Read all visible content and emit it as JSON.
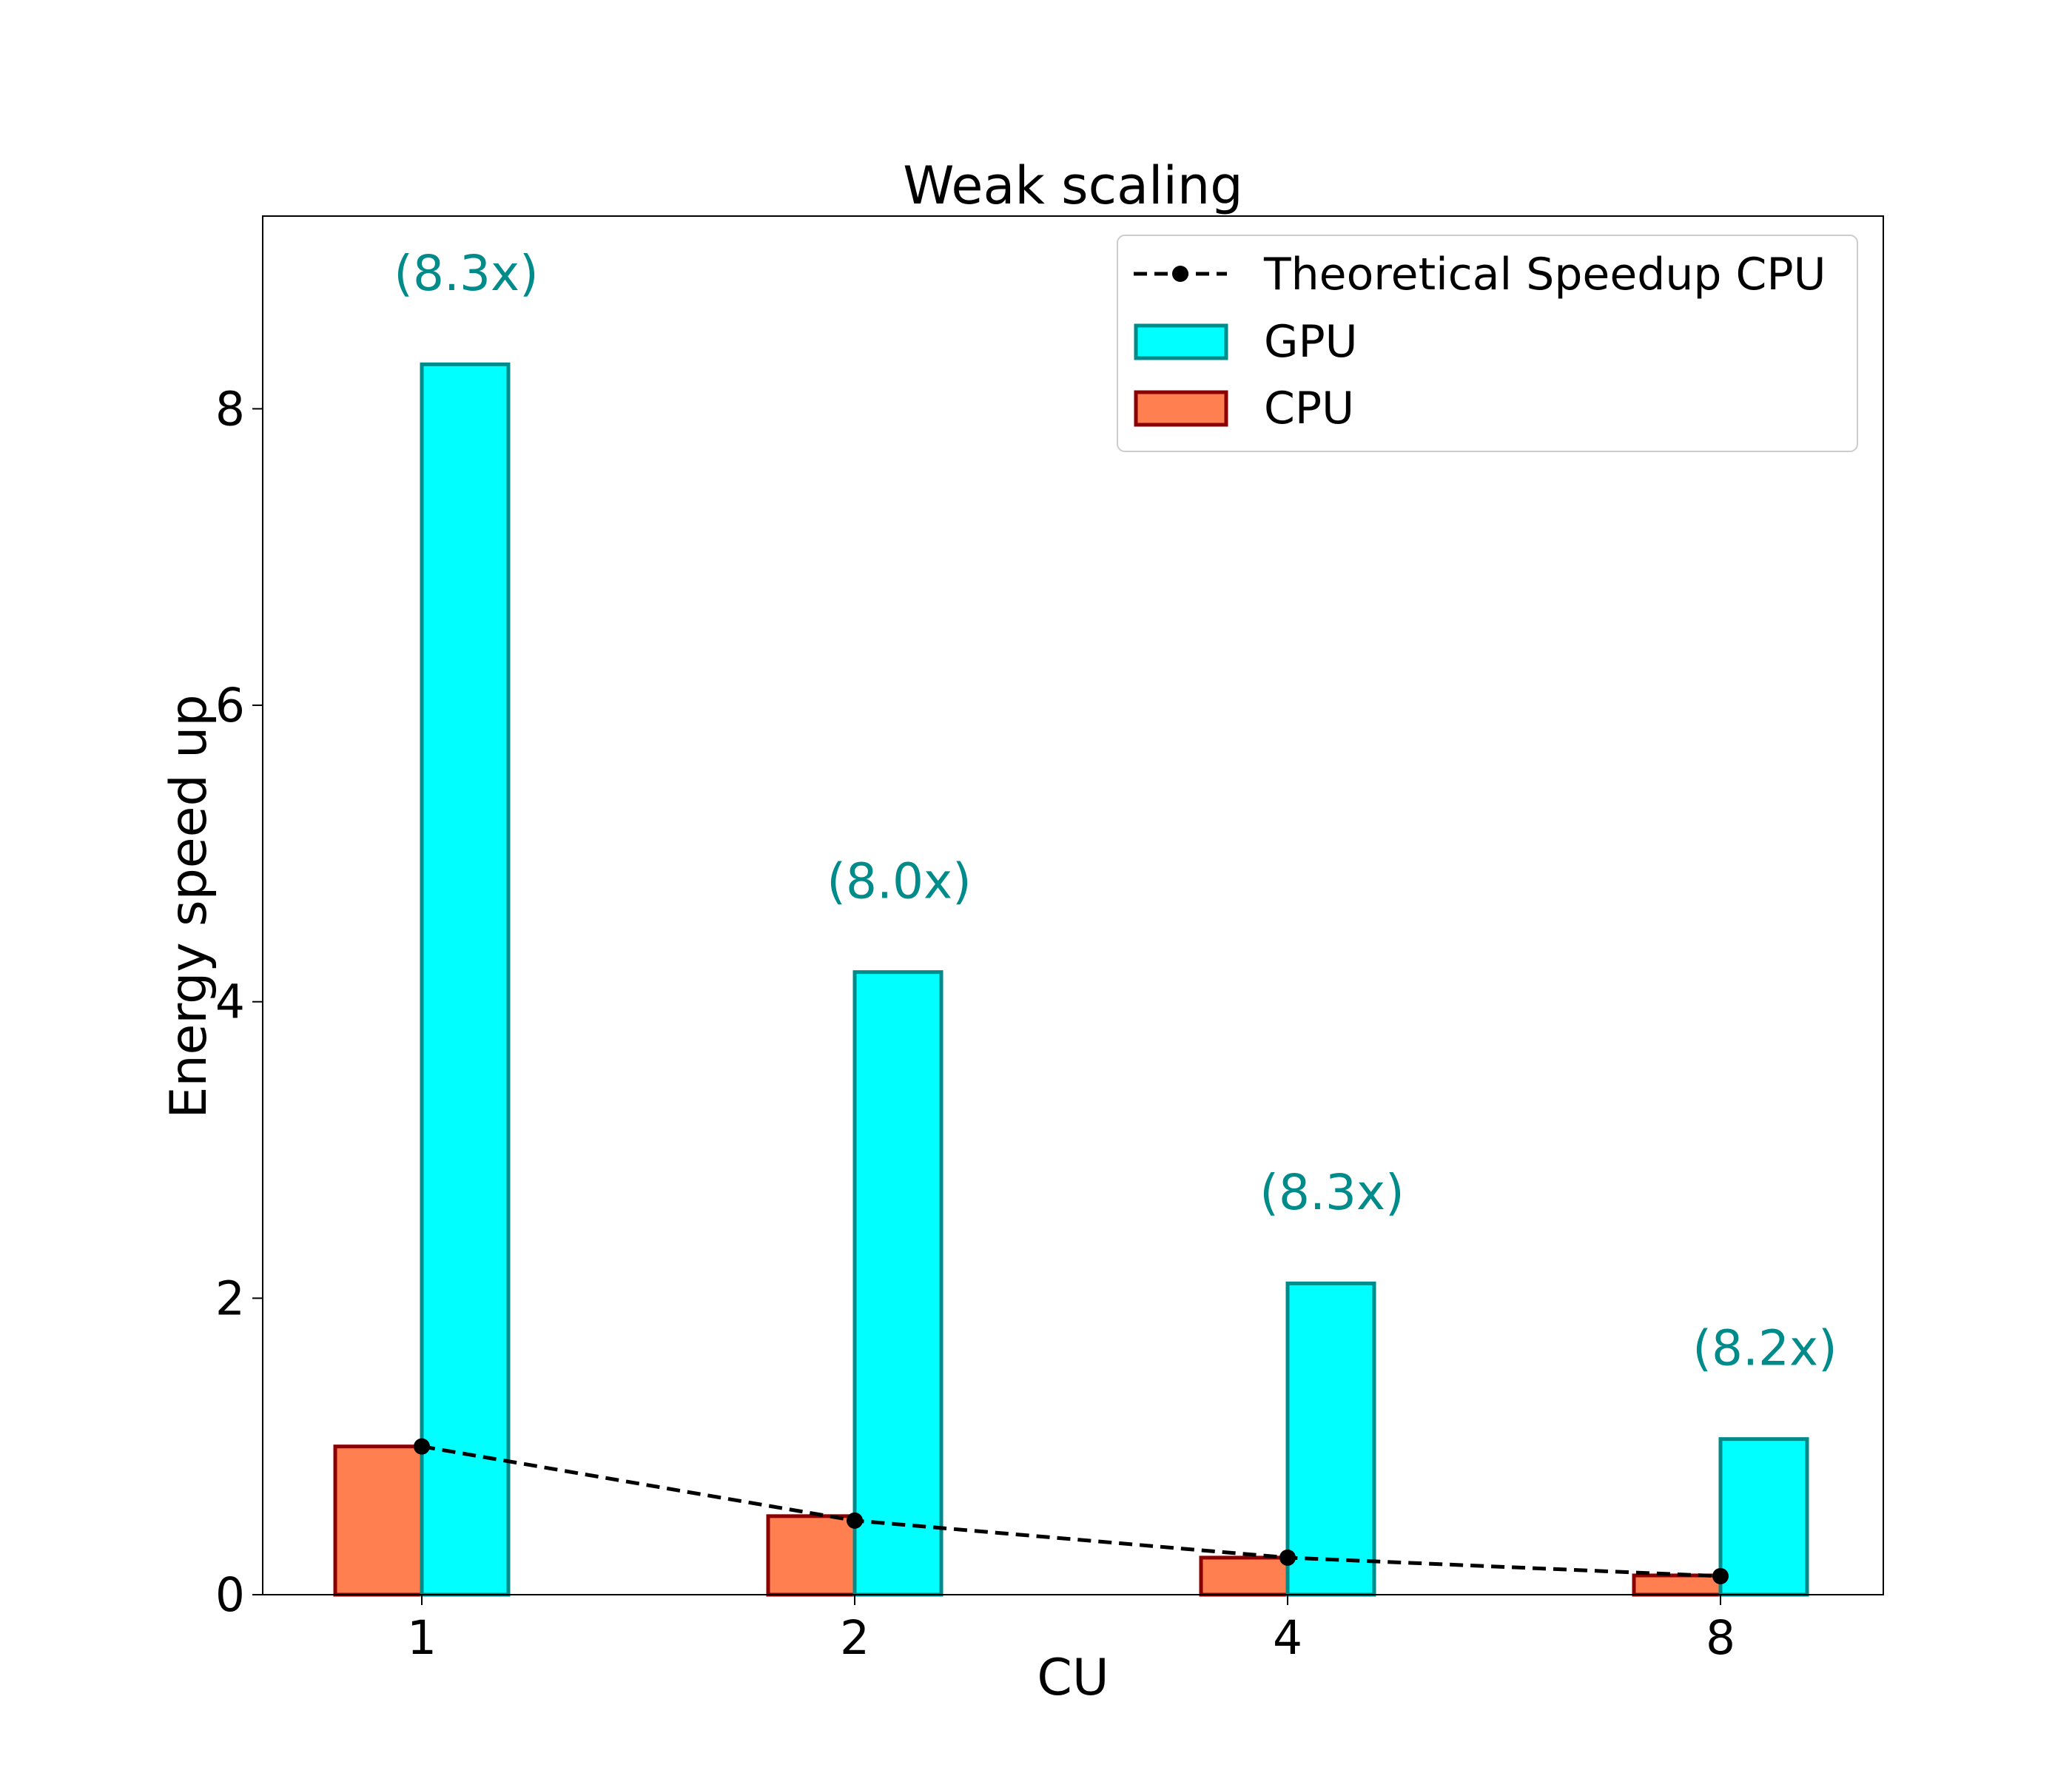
{
  "chart_data": {
    "type": "bar",
    "title": "Weak scaling",
    "xlabel": "CU",
    "ylabel": "Energy speed up",
    "categories": [
      "1",
      "2",
      "4",
      "8"
    ],
    "ylim": [
      0,
      9.3
    ],
    "yticks": [
      "0",
      "2",
      "4",
      "6",
      "8"
    ],
    "grid": false,
    "legend_position": "top-right",
    "series": [
      {
        "name": "CPU",
        "kind": "bar",
        "values": [
          1.0,
          0.53,
          0.25,
          0.13
        ],
        "fill": "#ff7f50",
        "stroke": "#8b0000"
      },
      {
        "name": "GPU",
        "kind": "bar",
        "values": [
          8.3,
          4.2,
          2.1,
          1.05
        ],
        "fill": "#00ffff",
        "stroke": "#008b8b"
      },
      {
        "name": "Theoretical Speedup CPU",
        "kind": "line",
        "values": [
          1.0,
          0.5,
          0.25,
          0.125
        ],
        "color": "#000000",
        "style": "dashed",
        "marker": "circle"
      }
    ],
    "annotations": [
      {
        "category": "1",
        "text": "(8.3x)",
        "y": 8.8
      },
      {
        "category": "2",
        "text": "(8.0x)",
        "y": 4.7
      },
      {
        "category": "4",
        "text": "(8.3x)",
        "y": 2.6
      },
      {
        "category": "8",
        "text": "(8.2x)",
        "y": 1.55
      }
    ],
    "annotation_color": "#008b8b"
  }
}
